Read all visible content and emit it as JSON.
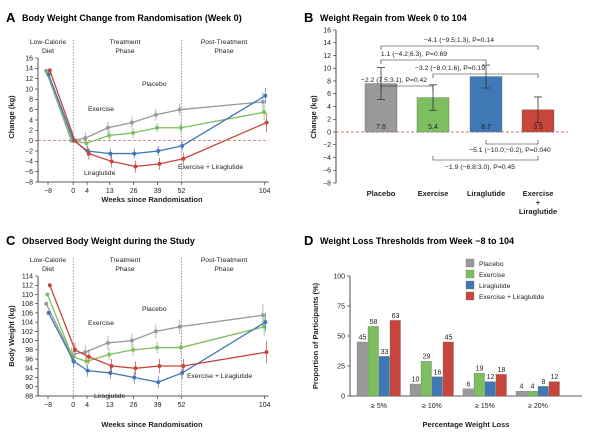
{
  "colors": {
    "placebo": "#999999",
    "exercise": "#7dbf5f",
    "liraglutide": "#3f78b5",
    "combo": "#c8453c"
  },
  "panels": {
    "A": {
      "label": "A",
      "title": "Body Weight Change from Randomisation (Week 0)"
    },
    "B": {
      "label": "B",
      "title": "Weight Regain from Week 0 to 104"
    },
    "C": {
      "label": "C",
      "title": "Observed Body Weight during the Study"
    },
    "D": {
      "label": "D",
      "title": "Weight Loss Thresholds from Week −8 to 104"
    }
  },
  "phases": {
    "diet1": "Low-Calorie",
    "diet2": "Diet",
    "treat1": "Treatment",
    "treat2": "Phase",
    "post1": "Post-Treatment",
    "post2": "Phase"
  },
  "line_annotations": {
    "placebo": "Placebo",
    "exercise": "Exercise",
    "liraglutide": "Liraglutide",
    "combo": "Exercise + Liraglutide"
  },
  "comparisons_B": {
    "c1": "−4.1 (−9.5;1.3), P=0.14",
    "c2": "1.1 (−4.2;6.3), P=0.69",
    "c3": "−3.2 (−8.0;1.6), P=0.19",
    "c4": "−2.2 (7.5;3.1), P=0.42",
    "c5": "−5.1 (−10.0;−0.2), P=0.040",
    "c6": "−1.9 (−6.8;3.0), P=0.45"
  },
  "legend_D": [
    "Placebo",
    "Exercise",
    "Liraglutide",
    "Exercise + Liraglutide"
  ],
  "chart_data": [
    {
      "type": "line",
      "title": "Body Weight Change from Randomisation (Week 0)",
      "xlabel": "Weeks since Randomisation",
      "ylabel": "Change (kg)",
      "x": [
        -8,
        0,
        4,
        13,
        26,
        39,
        52,
        104
      ],
      "xticks": [
        "−8",
        "0",
        "4",
        "13",
        "26",
        "39",
        "52",
        "104"
      ],
      "ylim": [
        -8,
        16
      ],
      "yticks": [
        -8,
        -6,
        -4,
        -2,
        0,
        2,
        4,
        6,
        8,
        10,
        12,
        14,
        16
      ],
      "series": [
        {
          "name": "Placebo",
          "values": [
            13.5,
            0,
            0.5,
            2.5,
            3.5,
            5,
            6,
            7.5
          ]
        },
        {
          "name": "Exercise",
          "values": [
            13.2,
            0,
            -0.5,
            1,
            1.5,
            2.5,
            2.5,
            5.5
          ]
        },
        {
          "name": "Liraglutide",
          "values": [
            12.8,
            0,
            -2,
            -2.5,
            -2.5,
            -2,
            -1,
            8.7
          ]
        },
        {
          "name": "Exercise + Liraglutide",
          "values": [
            13.6,
            0,
            -2.5,
            -4,
            -5,
            -4.5,
            -3.5,
            3.5
          ]
        }
      ]
    },
    {
      "type": "bar",
      "title": "Weight Regain from Week 0 to 104",
      "ylabel": "Change (kg)",
      "categories": [
        "Placebo",
        "Exercise",
        "Liraglutide",
        "Exercise + Liraglutide"
      ],
      "values": [
        7.6,
        5.4,
        8.7,
        3.5
      ],
      "labels": [
        "7.6",
        "5.4",
        "8.7",
        "3.5"
      ],
      "ylim": [
        -8,
        16
      ],
      "yticks": [
        -8,
        -6,
        -4,
        -2,
        0,
        2,
        4,
        6,
        8,
        10,
        12,
        14,
        16
      ]
    },
    {
      "type": "line",
      "title": "Observed Body Weight during the Study",
      "xlabel": "Weeks since Randomisation",
      "ylabel": "Body Weight (kg)",
      "x": [
        -8,
        0,
        4,
        13,
        26,
        39,
        52,
        104
      ],
      "xticks": [
        "−8",
        "0",
        "4",
        "13",
        "26",
        "39",
        "52",
        "104"
      ],
      "ylim": [
        88,
        114
      ],
      "yticks": [
        88,
        90,
        92,
        94,
        96,
        98,
        100,
        102,
        104,
        106,
        108,
        110,
        112,
        114
      ],
      "series": [
        {
          "name": "Placebo",
          "values": [
            108,
            97,
            97.5,
            99.5,
            100,
            102,
            103,
            105.5
          ]
        },
        {
          "name": "Exercise",
          "values": [
            110,
            96.5,
            95.5,
            97,
            98,
            98.5,
            98.5,
            103
          ]
        },
        {
          "name": "Liraglutide",
          "values": [
            106,
            95.5,
            93.5,
            93,
            92,
            91,
            93,
            104
          ]
        },
        {
          "name": "Exercise + Liraglutide",
          "values": [
            112,
            98,
            96.5,
            94.5,
            94,
            94.5,
            94.5,
            97.5
          ]
        }
      ]
    },
    {
      "type": "bar",
      "title": "Weight Loss Thresholds from Week −8 to 104",
      "xlabel": "Percentage Weight Loss",
      "ylabel": "Proportion of Participants (%)",
      "categories": [
        "≥ 5%",
        "≥ 10%",
        "≥ 15%",
        "≥ 20%"
      ],
      "ylim": [
        0,
        100
      ],
      "yticks": [
        0,
        25,
        50,
        75,
        100
      ],
      "series": [
        {
          "name": "Placebo",
          "values": [
            45,
            10,
            6,
            4
          ]
        },
        {
          "name": "Exercise",
          "values": [
            58,
            29,
            19,
            4
          ]
        },
        {
          "name": "Liraglutide",
          "values": [
            33,
            16,
            12,
            8
          ]
        },
        {
          "name": "Exercise + Liraglutide",
          "values": [
            63,
            45,
            18,
            12
          ]
        }
      ]
    }
  ]
}
